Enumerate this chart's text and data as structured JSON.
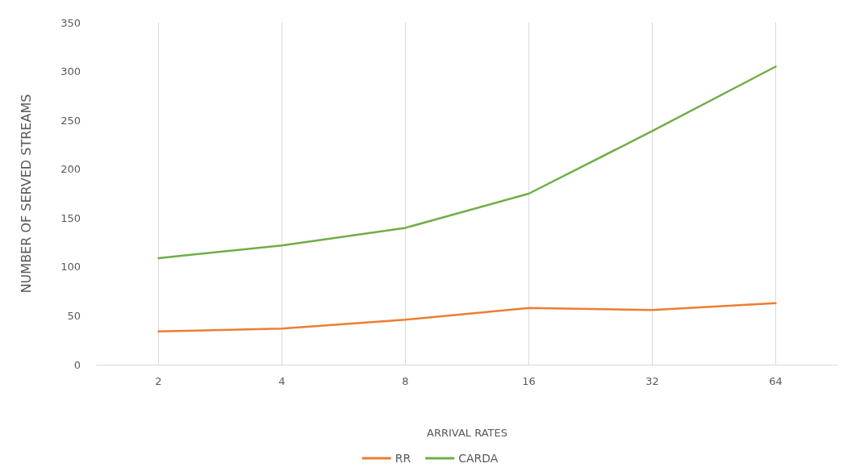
{
  "chart_data": {
    "type": "line",
    "xlabel": "ARRIVAL RATES",
    "ylabel": "NUMBER OF SERVED STREAMS",
    "categories": [
      "2",
      "4",
      "8",
      "16",
      "32",
      "64"
    ],
    "series": [
      {
        "name": "RR",
        "color": "#ed7d31",
        "values": [
          34,
          37,
          46,
          58,
          56,
          63
        ]
      },
      {
        "name": "CARDA",
        "color": "#70ad47",
        "values": [
          109,
          122,
          140,
          175,
          239,
          305
        ]
      }
    ],
    "ylim": [
      0,
      350
    ],
    "yticks": [
      0,
      50,
      100,
      150,
      200,
      250,
      300,
      350
    ],
    "grid": "x",
    "legend": "bottom",
    "marker": "none"
  }
}
